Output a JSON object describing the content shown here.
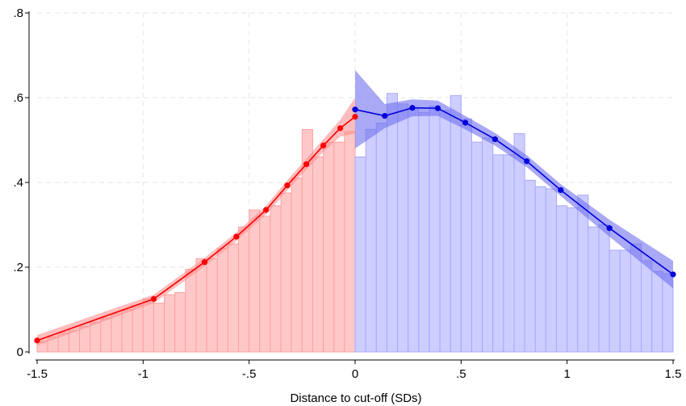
{
  "chart_data": {
    "type": "bar",
    "xlabel": "Distance to cut-off (SDs)",
    "ylabel": "",
    "xlim": [
      -1.5,
      1.5
    ],
    "ylim": [
      0,
      0.8
    ],
    "x_ticks": [
      {
        "value": -1.5,
        "label": "-1.5"
      },
      {
        "value": -1.0,
        "label": "-1"
      },
      {
        "value": -0.5,
        "label": "-.5"
      },
      {
        "value": 0.0,
        "label": "0"
      },
      {
        "value": 0.5,
        "label": ".5"
      },
      {
        "value": 1.0,
        "label": "1"
      },
      {
        "value": 1.5,
        "label": "1.5"
      }
    ],
    "y_ticks": [
      {
        "value": 0.0,
        "label": "0"
      },
      {
        "value": 0.2,
        "label": ".2"
      },
      {
        "value": 0.4,
        "label": ".4"
      },
      {
        "value": 0.6,
        "label": ".6"
      },
      {
        "value": 0.8,
        "label": ".8"
      }
    ],
    "grid": true,
    "colors": {
      "left_bar": "#ffc8c8",
      "left_bar_edge": "#ffa0a0",
      "left_band": "#ff9090",
      "left_line": "#ff0000",
      "right_bar": "#cdcdff",
      "right_bar_edge": "#a8a8ff",
      "right_band": "#7070ee",
      "right_line": "#0000dd"
    },
    "bin_width": 0.05,
    "bars_left": [
      {
        "x0": -1.5,
        "y": 0.025
      },
      {
        "x0": -1.45,
        "y": 0.035
      },
      {
        "x0": -1.4,
        "y": 0.045
      },
      {
        "x0": -1.35,
        "y": 0.05
      },
      {
        "x0": -1.3,
        "y": 0.06
      },
      {
        "x0": -1.25,
        "y": 0.07
      },
      {
        "x0": -1.2,
        "y": 0.08
      },
      {
        "x0": -1.15,
        "y": 0.09
      },
      {
        "x0": -1.1,
        "y": 0.1
      },
      {
        "x0": -1.05,
        "y": 0.11
      },
      {
        "x0": -1.0,
        "y": 0.125
      },
      {
        "x0": -0.95,
        "y": 0.115
      },
      {
        "x0": -0.9,
        "y": 0.135
      },
      {
        "x0": -0.85,
        "y": 0.14
      },
      {
        "x0": -0.8,
        "y": 0.195
      },
      {
        "x0": -0.75,
        "y": 0.22
      },
      {
        "x0": -0.7,
        "y": 0.22
      },
      {
        "x0": -0.65,
        "y": 0.245
      },
      {
        "x0": -0.6,
        "y": 0.255
      },
      {
        "x0": -0.55,
        "y": 0.295
      },
      {
        "x0": -0.5,
        "y": 0.335
      },
      {
        "x0": -0.45,
        "y": 0.32
      },
      {
        "x0": -0.4,
        "y": 0.345
      },
      {
        "x0": -0.35,
        "y": 0.375
      },
      {
        "x0": -0.3,
        "y": 0.41
      },
      {
        "x0": -0.25,
        "y": 0.525
      },
      {
        "x0": -0.2,
        "y": 0.46
      },
      {
        "x0": -0.15,
        "y": 0.495
      },
      {
        "x0": -0.1,
        "y": 0.495
      },
      {
        "x0": -0.05,
        "y": 0.52
      }
    ],
    "bars_right": [
      {
        "x0": 0.0,
        "y": 0.46
      },
      {
        "x0": 0.05,
        "y": 0.525
      },
      {
        "x0": 0.1,
        "y": 0.54
      },
      {
        "x0": 0.15,
        "y": 0.61
      },
      {
        "x0": 0.2,
        "y": 0.585
      },
      {
        "x0": 0.25,
        "y": 0.575
      },
      {
        "x0": 0.3,
        "y": 0.565
      },
      {
        "x0": 0.35,
        "y": 0.58
      },
      {
        "x0": 0.4,
        "y": 0.57
      },
      {
        "x0": 0.45,
        "y": 0.605
      },
      {
        "x0": 0.5,
        "y": 0.55
      },
      {
        "x0": 0.55,
        "y": 0.495
      },
      {
        "x0": 0.6,
        "y": 0.505
      },
      {
        "x0": 0.65,
        "y": 0.465
      },
      {
        "x0": 0.7,
        "y": 0.465
      },
      {
        "x0": 0.75,
        "y": 0.515
      },
      {
        "x0": 0.8,
        "y": 0.405
      },
      {
        "x0": 0.85,
        "y": 0.39
      },
      {
        "x0": 0.9,
        "y": 0.385
      },
      {
        "x0": 0.95,
        "y": 0.345
      },
      {
        "x0": 1.0,
        "y": 0.34
      },
      {
        "x0": 1.05,
        "y": 0.37
      },
      {
        "x0": 1.1,
        "y": 0.295
      },
      {
        "x0": 1.15,
        "y": 0.3
      },
      {
        "x0": 1.2,
        "y": 0.24
      },
      {
        "x0": 1.25,
        "y": 0.24
      },
      {
        "x0": 1.3,
        "y": 0.255
      },
      {
        "x0": 1.35,
        "y": 0.215
      },
      {
        "x0": 1.4,
        "y": 0.19
      },
      {
        "x0": 1.45,
        "y": 0.185
      }
    ],
    "fit_left": [
      {
        "x": -1.5,
        "y": 0.027
      },
      {
        "x": -0.95,
        "y": 0.125
      },
      {
        "x": -0.71,
        "y": 0.212
      },
      {
        "x": -0.56,
        "y": 0.272
      },
      {
        "x": -0.42,
        "y": 0.335
      },
      {
        "x": -0.32,
        "y": 0.393
      },
      {
        "x": -0.23,
        "y": 0.443
      },
      {
        "x": -0.15,
        "y": 0.487
      },
      {
        "x": -0.07,
        "y": 0.528
      },
      {
        "x": 0.0,
        "y": 0.555
      }
    ],
    "band_left": [
      {
        "x": -1.5,
        "lo": 0.015,
        "hi": 0.04
      },
      {
        "x": -0.95,
        "lo": 0.115,
        "hi": 0.135
      },
      {
        "x": -0.71,
        "lo": 0.202,
        "hi": 0.222
      },
      {
        "x": -0.56,
        "lo": 0.262,
        "hi": 0.282
      },
      {
        "x": -0.42,
        "lo": 0.325,
        "hi": 0.345
      },
      {
        "x": -0.32,
        "lo": 0.381,
        "hi": 0.405
      },
      {
        "x": -0.23,
        "lo": 0.43,
        "hi": 0.456
      },
      {
        "x": -0.15,
        "lo": 0.472,
        "hi": 0.502
      },
      {
        "x": -0.07,
        "lo": 0.508,
        "hi": 0.548
      },
      {
        "x": 0.0,
        "lo": 0.515,
        "hi": 0.6
      }
    ],
    "fit_right": [
      {
        "x": 0.0,
        "y": 0.572
      },
      {
        "x": 0.14,
        "y": 0.557
      },
      {
        "x": 0.27,
        "y": 0.576
      },
      {
        "x": 0.39,
        "y": 0.575
      },
      {
        "x": 0.52,
        "y": 0.541
      },
      {
        "x": 0.66,
        "y": 0.502
      },
      {
        "x": 0.81,
        "y": 0.45
      },
      {
        "x": 0.97,
        "y": 0.382
      },
      {
        "x": 1.2,
        "y": 0.292
      },
      {
        "x": 1.5,
        "y": 0.183
      }
    ],
    "band_right": [
      {
        "x": 0.0,
        "lo": 0.48,
        "hi": 0.665
      },
      {
        "x": 0.14,
        "lo": 0.528,
        "hi": 0.585
      },
      {
        "x": 0.27,
        "lo": 0.556,
        "hi": 0.596
      },
      {
        "x": 0.39,
        "lo": 0.557,
        "hi": 0.593
      },
      {
        "x": 0.52,
        "lo": 0.525,
        "hi": 0.557
      },
      {
        "x": 0.66,
        "lo": 0.487,
        "hi": 0.517
      },
      {
        "x": 0.81,
        "lo": 0.436,
        "hi": 0.464
      },
      {
        "x": 0.97,
        "lo": 0.368,
        "hi": 0.396
      },
      {
        "x": 1.2,
        "lo": 0.272,
        "hi": 0.312
      },
      {
        "x": 1.5,
        "lo": 0.15,
        "hi": 0.215
      }
    ]
  }
}
